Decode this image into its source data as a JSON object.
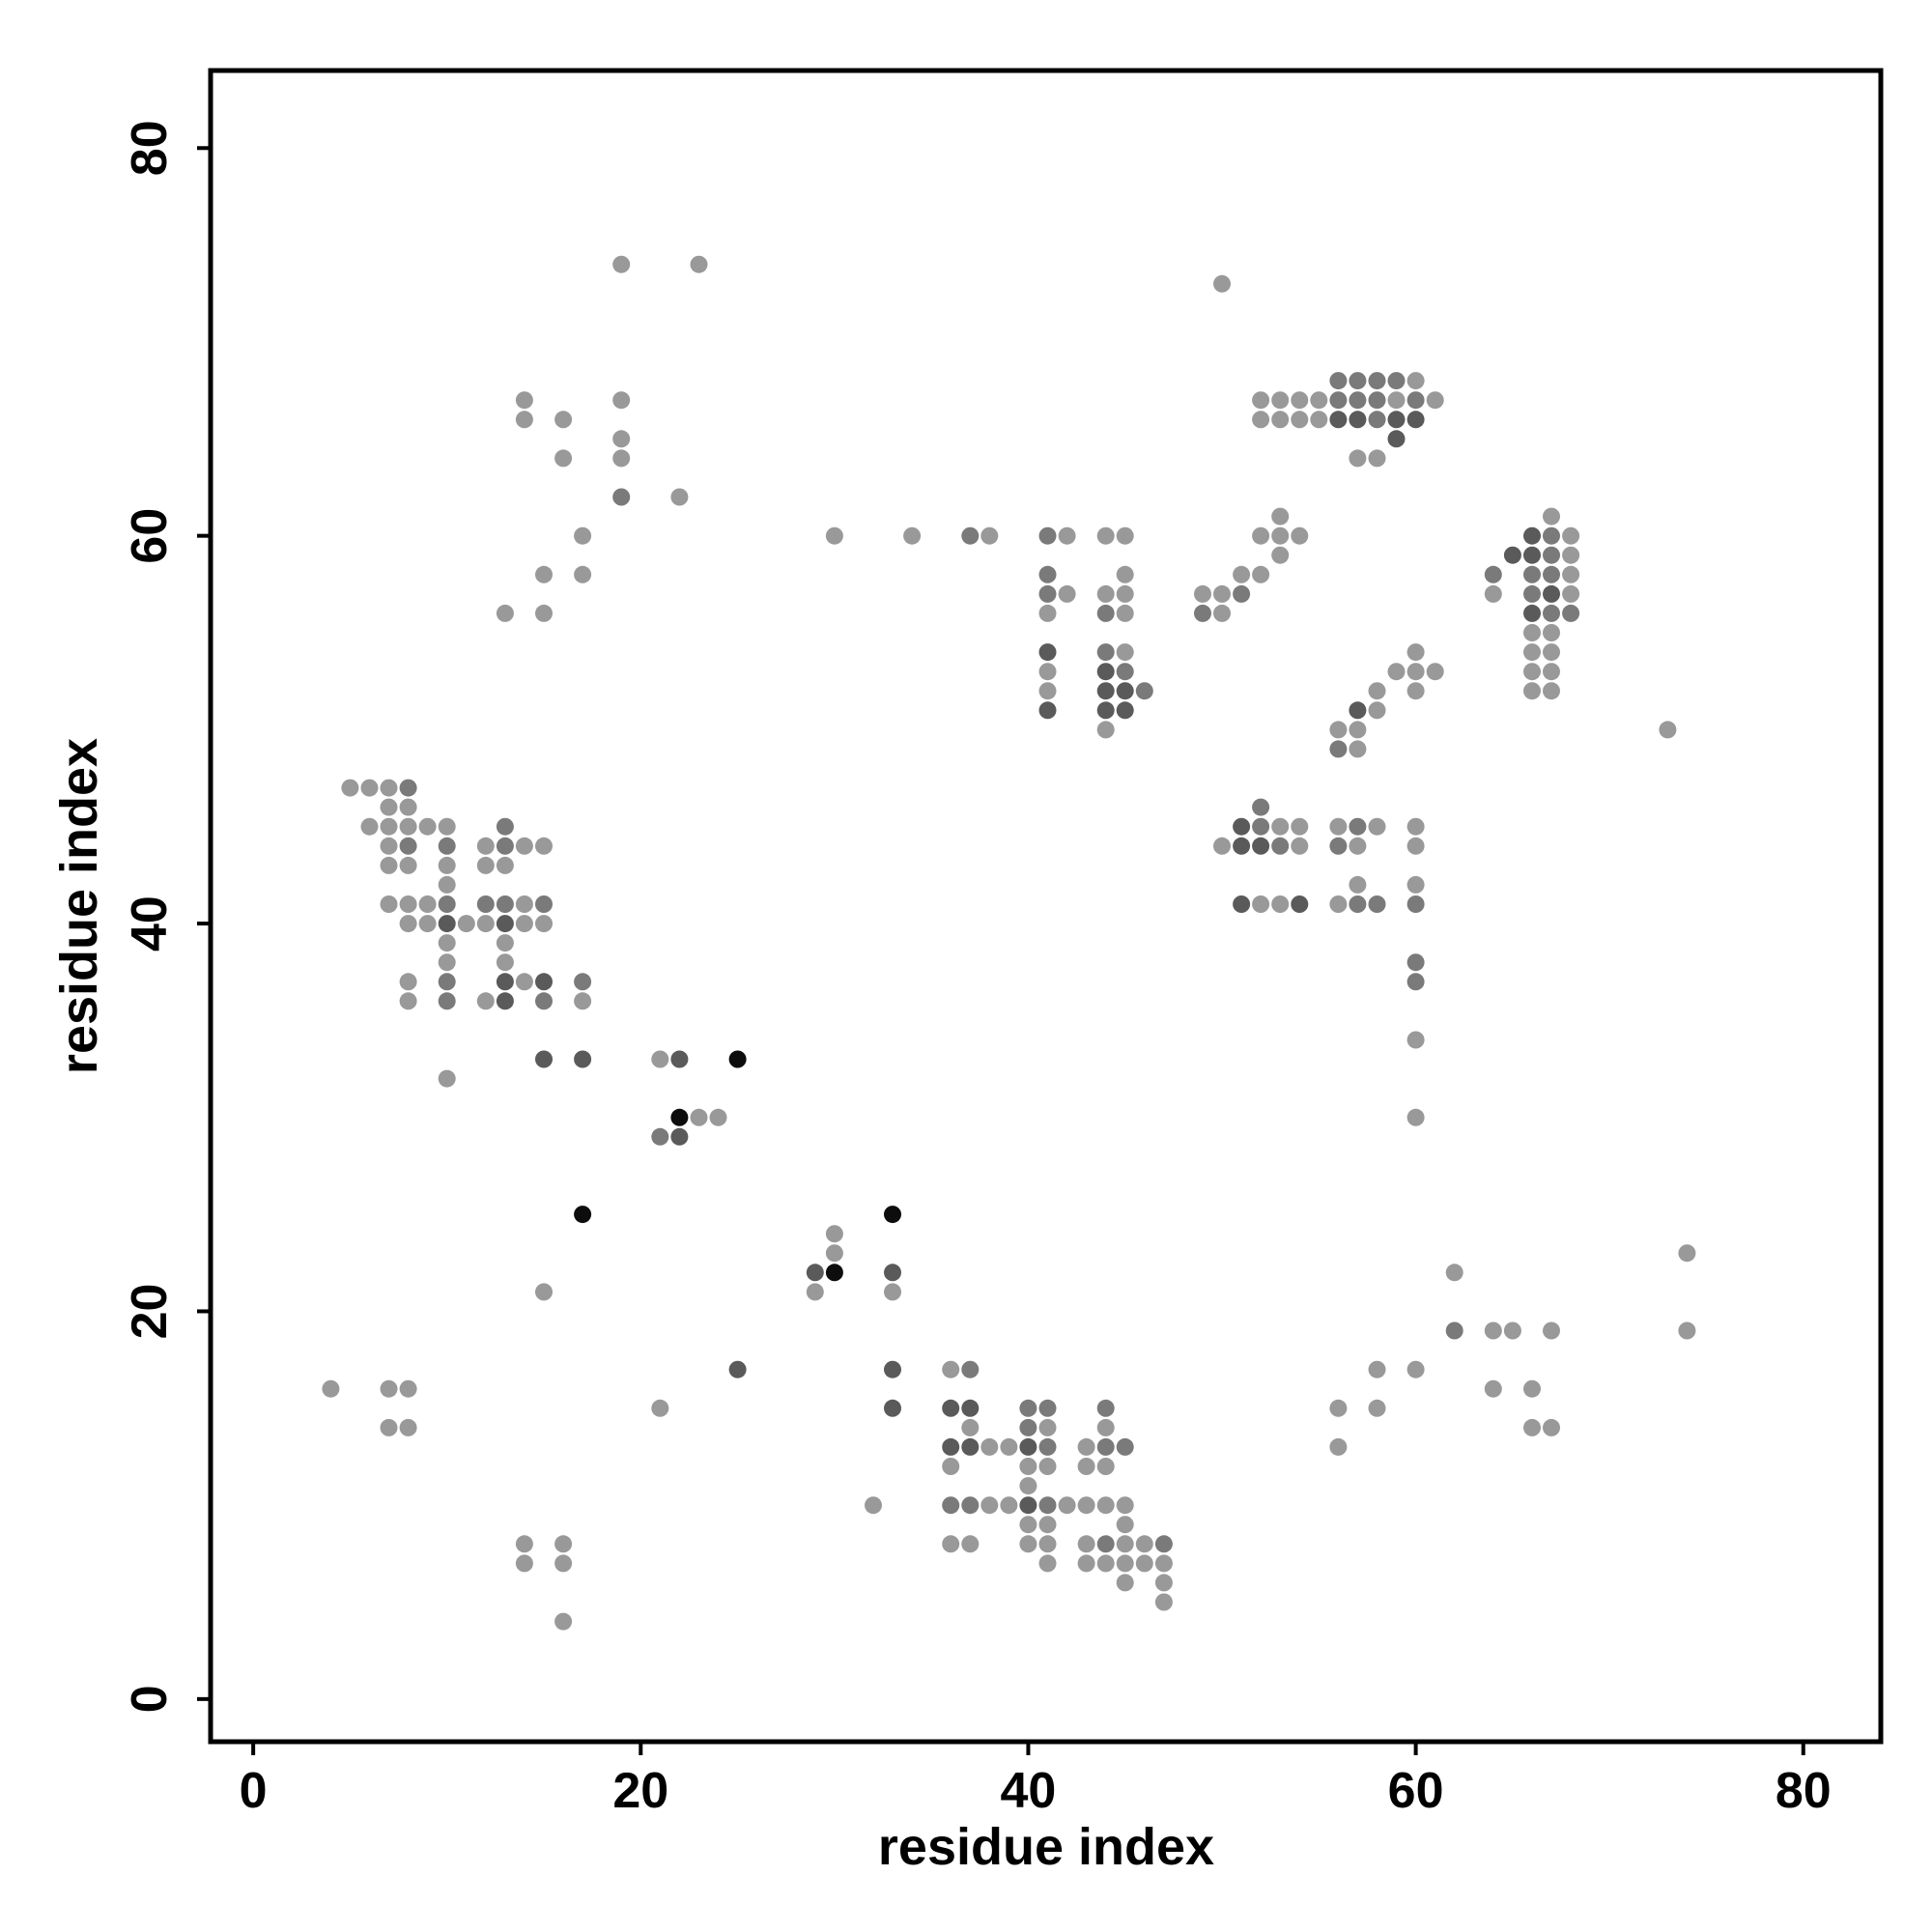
{
  "chart_data": {
    "type": "scatter",
    "title": "",
    "xlabel": "residue index",
    "ylabel": "residue index",
    "xlim": [
      -2.2,
      84
    ],
    "ylim": [
      -2.2,
      84
    ],
    "x_ticks": [
      0,
      20,
      40,
      60,
      80
    ],
    "y_ticks": [
      0,
      20,
      40,
      60,
      80
    ],
    "grid": false,
    "legend": "none",
    "colors": {
      "dark": "#0d0d0d",
      "medium": "#5a5a5a",
      "mid_light": "#7a7a7a",
      "light": "#999999"
    },
    "points": [
      [
        19,
        74,
        "light"
      ],
      [
        23,
        74,
        "light"
      ],
      [
        50,
        73,
        "light"
      ],
      [
        14,
        67,
        "light"
      ],
      [
        19,
        67,
        "light"
      ],
      [
        14,
        66,
        "light"
      ],
      [
        16,
        66,
        "light"
      ],
      [
        19,
        65,
        "light"
      ],
      [
        16,
        64,
        "light"
      ],
      [
        19,
        64,
        "light"
      ],
      [
        19,
        62,
        "mid_light"
      ],
      [
        22,
        62,
        "light"
      ],
      [
        17,
        60,
        "light"
      ],
      [
        15,
        58,
        "light"
      ],
      [
        17,
        58,
        "light"
      ],
      [
        13,
        56,
        "light"
      ],
      [
        15,
        56,
        "light"
      ],
      [
        30,
        60,
        "light"
      ],
      [
        34,
        60,
        "light"
      ],
      [
        37,
        60,
        "mid_light"
      ],
      [
        38,
        60,
        "light"
      ],
      [
        41,
        60,
        "mid_light"
      ],
      [
        42,
        60,
        "light"
      ],
      [
        44,
        60,
        "light"
      ],
      [
        45,
        60,
        "light"
      ],
      [
        41,
        58,
        "mid_light"
      ],
      [
        41,
        57,
        "mid_light"
      ],
      [
        42,
        57,
        "light"
      ],
      [
        41,
        56,
        "light"
      ],
      [
        41,
        54,
        "medium"
      ],
      [
        41,
        53,
        "light"
      ],
      [
        41,
        52,
        "light"
      ],
      [
        41,
        51,
        "medium"
      ],
      [
        44,
        57,
        "light"
      ],
      [
        45,
        58,
        "light"
      ],
      [
        45,
        57,
        "light"
      ],
      [
        44,
        56,
        "mid_light"
      ],
      [
        45,
        56,
        "light"
      ],
      [
        44,
        54,
        "mid_light"
      ],
      [
        45,
        54,
        "light"
      ],
      [
        44,
        53,
        "medium"
      ],
      [
        45,
        53,
        "mid_light"
      ],
      [
        44,
        52,
        "medium"
      ],
      [
        45,
        52,
        "medium"
      ],
      [
        46,
        52,
        "mid_light"
      ],
      [
        44,
        51,
        "medium"
      ],
      [
        45,
        51,
        "medium"
      ],
      [
        44,
        50,
        "light"
      ],
      [
        52,
        67,
        "light"
      ],
      [
        53,
        67,
        "light"
      ],
      [
        54,
        67,
        "light"
      ],
      [
        55,
        67,
        "light"
      ],
      [
        56,
        67,
        "mid_light"
      ],
      [
        57,
        67,
        "mid_light"
      ],
      [
        58,
        67,
        "mid_light"
      ],
      [
        59,
        67,
        "light"
      ],
      [
        60,
        67,
        "mid_light"
      ],
      [
        61,
        67,
        "light"
      ],
      [
        52,
        66,
        "light"
      ],
      [
        53,
        66,
        "light"
      ],
      [
        54,
        66,
        "light"
      ],
      [
        55,
        66,
        "light"
      ],
      [
        56,
        66,
        "medium"
      ],
      [
        57,
        66,
        "medium"
      ],
      [
        58,
        66,
        "mid_light"
      ],
      [
        59,
        66,
        "medium"
      ],
      [
        60,
        66,
        "medium"
      ],
      [
        56,
        68,
        "mid_light"
      ],
      [
        57,
        68,
        "mid_light"
      ],
      [
        58,
        68,
        "mid_light"
      ],
      [
        59,
        68,
        "mid_light"
      ],
      [
        60,
        68,
        "light"
      ],
      [
        59,
        65,
        "medium"
      ],
      [
        57,
        64,
        "light"
      ],
      [
        58,
        64,
        "light"
      ],
      [
        53,
        61,
        "light"
      ],
      [
        52,
        60,
        "light"
      ],
      [
        53,
        60,
        "light"
      ],
      [
        54,
        60,
        "light"
      ],
      [
        53,
        59,
        "light"
      ],
      [
        51,
        58,
        "light"
      ],
      [
        52,
        58,
        "light"
      ],
      [
        49,
        57,
        "light"
      ],
      [
        50,
        57,
        "light"
      ],
      [
        51,
        57,
        "mid_light"
      ],
      [
        49,
        56,
        "mid_light"
      ],
      [
        50,
        56,
        "light"
      ],
      [
        60,
        54,
        "light"
      ],
      [
        59,
        53,
        "light"
      ],
      [
        60,
        53,
        "light"
      ],
      [
        61,
        53,
        "light"
      ],
      [
        58,
        52,
        "light"
      ],
      [
        60,
        52,
        "light"
      ],
      [
        57,
        51,
        "medium"
      ],
      [
        58,
        51,
        "light"
      ],
      [
        56,
        50,
        "light"
      ],
      [
        57,
        50,
        "light"
      ],
      [
        56,
        49,
        "mid_light"
      ],
      [
        57,
        49,
        "light"
      ],
      [
        67,
        61,
        "light"
      ],
      [
        66,
        60,
        "medium"
      ],
      [
        67,
        60,
        "mid_light"
      ],
      [
        68,
        60,
        "light"
      ],
      [
        65,
        59,
        "medium"
      ],
      [
        66,
        59,
        "medium"
      ],
      [
        67,
        59,
        "mid_light"
      ],
      [
        68,
        59,
        "light"
      ],
      [
        64,
        58,
        "mid_light"
      ],
      [
        66,
        58,
        "mid_light"
      ],
      [
        67,
        58,
        "mid_light"
      ],
      [
        68,
        58,
        "light"
      ],
      [
        64,
        57,
        "light"
      ],
      [
        66,
        57,
        "mid_light"
      ],
      [
        67,
        57,
        "medium"
      ],
      [
        68,
        57,
        "light"
      ],
      [
        66,
        56,
        "medium"
      ],
      [
        67,
        56,
        "mid_light"
      ],
      [
        68,
        56,
        "mid_light"
      ],
      [
        66,
        55,
        "light"
      ],
      [
        67,
        55,
        "light"
      ],
      [
        66,
        54,
        "light"
      ],
      [
        67,
        54,
        "light"
      ],
      [
        66,
        53,
        "light"
      ],
      [
        67,
        53,
        "light"
      ],
      [
        66,
        52,
        "light"
      ],
      [
        67,
        52,
        "light"
      ],
      [
        73,
        50,
        "light"
      ],
      [
        5,
        47,
        "light"
      ],
      [
        6,
        47,
        "light"
      ],
      [
        7,
        47,
        "light"
      ],
      [
        8,
        47,
        "mid_light"
      ],
      [
        7,
        46,
        "light"
      ],
      [
        8,
        46,
        "light"
      ],
      [
        6,
        45,
        "light"
      ],
      [
        7,
        45,
        "light"
      ],
      [
        8,
        45,
        "light"
      ],
      [
        9,
        45,
        "light"
      ],
      [
        10,
        45,
        "light"
      ],
      [
        13,
        45,
        "mid_light"
      ],
      [
        7,
        44,
        "light"
      ],
      [
        8,
        44,
        "mid_light"
      ],
      [
        10,
        44,
        "mid_light"
      ],
      [
        12,
        44,
        "light"
      ],
      [
        13,
        44,
        "mid_light"
      ],
      [
        14,
        44,
        "light"
      ],
      [
        15,
        44,
        "light"
      ],
      [
        7,
        43,
        "light"
      ],
      [
        8,
        43,
        "light"
      ],
      [
        10,
        43,
        "light"
      ],
      [
        12,
        43,
        "light"
      ],
      [
        13,
        43,
        "light"
      ],
      [
        10,
        42,
        "light"
      ],
      [
        7,
        41,
        "light"
      ],
      [
        8,
        41,
        "light"
      ],
      [
        9,
        41,
        "light"
      ],
      [
        10,
        41,
        "mid_light"
      ],
      [
        12,
        41,
        "mid_light"
      ],
      [
        13,
        41,
        "mid_light"
      ],
      [
        14,
        41,
        "light"
      ],
      [
        15,
        41,
        "mid_light"
      ],
      [
        8,
        40,
        "light"
      ],
      [
        9,
        40,
        "light"
      ],
      [
        10,
        40,
        "medium"
      ],
      [
        11,
        40,
        "light"
      ],
      [
        12,
        40,
        "light"
      ],
      [
        13,
        40,
        "medium"
      ],
      [
        14,
        40,
        "light"
      ],
      [
        15,
        40,
        "light"
      ],
      [
        10,
        39,
        "light"
      ],
      [
        13,
        39,
        "light"
      ],
      [
        10,
        38,
        "light"
      ],
      [
        13,
        38,
        "light"
      ],
      [
        8,
        37,
        "light"
      ],
      [
        10,
        37,
        "mid_light"
      ],
      [
        13,
        37,
        "medium"
      ],
      [
        14,
        37,
        "light"
      ],
      [
        15,
        37,
        "medium"
      ],
      [
        17,
        37,
        "mid_light"
      ],
      [
        8,
        36,
        "light"
      ],
      [
        10,
        36,
        "mid_light"
      ],
      [
        12,
        36,
        "light"
      ],
      [
        13,
        36,
        "medium"
      ],
      [
        15,
        36,
        "mid_light"
      ],
      [
        17,
        36,
        "light"
      ],
      [
        15,
        33,
        "medium"
      ],
      [
        17,
        33,
        "medium"
      ],
      [
        10,
        32,
        "light"
      ],
      [
        21,
        33,
        "light"
      ],
      [
        22,
        33,
        "medium"
      ],
      [
        25,
        33,
        "dark"
      ],
      [
        22,
        30,
        "dark"
      ],
      [
        23,
        30,
        "light"
      ],
      [
        24,
        30,
        "light"
      ],
      [
        21,
        29,
        "mid_light"
      ],
      [
        22,
        29,
        "medium"
      ],
      [
        51,
        45,
        "medium"
      ],
      [
        52,
        45,
        "mid_light"
      ],
      [
        53,
        45,
        "light"
      ],
      [
        54,
        45,
        "light"
      ],
      [
        52,
        46,
        "mid_light"
      ],
      [
        50,
        44,
        "light"
      ],
      [
        51,
        44,
        "medium"
      ],
      [
        52,
        44,
        "medium"
      ],
      [
        53,
        44,
        "mid_light"
      ],
      [
        54,
        44,
        "light"
      ],
      [
        51,
        41,
        "medium"
      ],
      [
        52,
        41,
        "light"
      ],
      [
        53,
        41,
        "light"
      ],
      [
        54,
        41,
        "medium"
      ],
      [
        56,
        45,
        "light"
      ],
      [
        57,
        45,
        "mid_light"
      ],
      [
        58,
        45,
        "light"
      ],
      [
        56,
        44,
        "mid_light"
      ],
      [
        57,
        44,
        "light"
      ],
      [
        57,
        42,
        "light"
      ],
      [
        56,
        41,
        "light"
      ],
      [
        57,
        41,
        "mid_light"
      ],
      [
        58,
        41,
        "mid_light"
      ],
      [
        60,
        45,
        "light"
      ],
      [
        60,
        44,
        "light"
      ],
      [
        60,
        42,
        "light"
      ],
      [
        60,
        41,
        "mid_light"
      ],
      [
        60,
        38,
        "mid_light"
      ],
      [
        60,
        37,
        "mid_light"
      ],
      [
        60,
        34,
        "light"
      ],
      [
        60,
        30,
        "light"
      ],
      [
        17,
        25,
        "dark"
      ],
      [
        15,
        21,
        "light"
      ],
      [
        33,
        25,
        "dark"
      ],
      [
        30,
        24,
        "light"
      ],
      [
        30,
        23,
        "light"
      ],
      [
        29,
        22,
        "medium"
      ],
      [
        30,
        22,
        "dark"
      ],
      [
        29,
        21,
        "light"
      ],
      [
        33,
        22,
        "medium"
      ],
      [
        33,
        21,
        "light"
      ],
      [
        25,
        17,
        "medium"
      ],
      [
        33,
        17,
        "medium"
      ],
      [
        33,
        15,
        "medium"
      ],
      [
        21,
        15,
        "light"
      ],
      [
        32,
        10,
        "light"
      ],
      [
        4,
        16,
        "light"
      ],
      [
        7,
        16,
        "light"
      ],
      [
        8,
        16,
        "light"
      ],
      [
        7,
        14,
        "light"
      ],
      [
        8,
        14,
        "light"
      ],
      [
        14,
        8,
        "light"
      ],
      [
        16,
        8,
        "light"
      ],
      [
        14,
        7,
        "light"
      ],
      [
        16,
        7,
        "light"
      ],
      [
        16,
        4,
        "light"
      ],
      [
        36,
        17,
        "light"
      ],
      [
        37,
        17,
        "mid_light"
      ],
      [
        36,
        15,
        "medium"
      ],
      [
        37,
        15,
        "medium"
      ],
      [
        37,
        14,
        "light"
      ],
      [
        36,
        13,
        "medium"
      ],
      [
        37,
        13,
        "medium"
      ],
      [
        38,
        13,
        "light"
      ],
      [
        39,
        13,
        "light"
      ],
      [
        36,
        12,
        "light"
      ],
      [
        40,
        15,
        "mid_light"
      ],
      [
        41,
        15,
        "mid_light"
      ],
      [
        40,
        14,
        "mid_light"
      ],
      [
        41,
        14,
        "light"
      ],
      [
        40,
        13,
        "medium"
      ],
      [
        41,
        13,
        "mid_light"
      ],
      [
        40,
        12,
        "light"
      ],
      [
        41,
        12,
        "light"
      ],
      [
        40,
        11,
        "light"
      ],
      [
        36,
        10,
        "mid_light"
      ],
      [
        37,
        10,
        "mid_light"
      ],
      [
        38,
        10,
        "light"
      ],
      [
        39,
        10,
        "light"
      ],
      [
        40,
        10,
        "medium"
      ],
      [
        41,
        10,
        "mid_light"
      ],
      [
        42,
        10,
        "light"
      ],
      [
        43,
        10,
        "light"
      ],
      [
        44,
        10,
        "light"
      ],
      [
        45,
        10,
        "light"
      ],
      [
        40,
        9,
        "light"
      ],
      [
        41,
        9,
        "light"
      ],
      [
        36,
        8,
        "light"
      ],
      [
        37,
        8,
        "light"
      ],
      [
        40,
        8,
        "light"
      ],
      [
        41,
        8,
        "light"
      ],
      [
        41,
        7,
        "light"
      ],
      [
        43,
        13,
        "light"
      ],
      [
        44,
        13,
        "mid_light"
      ],
      [
        45,
        13,
        "mid_light"
      ],
      [
        44,
        15,
        "mid_light"
      ],
      [
        44,
        14,
        "light"
      ],
      [
        43,
        12,
        "light"
      ],
      [
        44,
        12,
        "light"
      ],
      [
        45,
        9,
        "light"
      ],
      [
        43,
        8,
        "light"
      ],
      [
        44,
        8,
        "mid_light"
      ],
      [
        45,
        8,
        "light"
      ],
      [
        46,
        8,
        "light"
      ],
      [
        47,
        8,
        "mid_light"
      ],
      [
        43,
        7,
        "light"
      ],
      [
        44,
        7,
        "light"
      ],
      [
        45,
        7,
        "light"
      ],
      [
        46,
        7,
        "light"
      ],
      [
        47,
        7,
        "light"
      ],
      [
        45,
        6,
        "light"
      ],
      [
        47,
        6,
        "light"
      ],
      [
        47,
        5,
        "light"
      ],
      [
        62,
        22,
        "light"
      ],
      [
        62,
        19,
        "mid_light"
      ],
      [
        64,
        19,
        "light"
      ],
      [
        65,
        19,
        "light"
      ],
      [
        67,
        19,
        "light"
      ],
      [
        64,
        16,
        "light"
      ],
      [
        66,
        16,
        "light"
      ],
      [
        66,
        14,
        "light"
      ],
      [
        67,
        14,
        "light"
      ],
      [
        74,
        23,
        "light"
      ],
      [
        74,
        19,
        "light"
      ],
      [
        58,
        17,
        "light"
      ],
      [
        60,
        17,
        "light"
      ],
      [
        56,
        15,
        "light"
      ],
      [
        58,
        15,
        "light"
      ],
      [
        56,
        13,
        "light"
      ]
    ]
  }
}
